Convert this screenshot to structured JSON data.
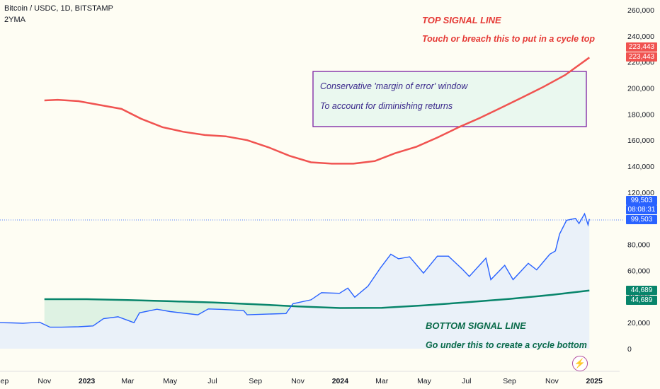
{
  "header": {
    "title": "Bitcoin / USDC, 1D, BITSTAMP",
    "indicator": "2YMA"
  },
  "annotations": {
    "top_title": "TOP SIGNAL LINE",
    "top_sub": "Touch or breach this to put in a cycle top",
    "box_line1": "Conservative 'margin of error' window",
    "box_line2": "To account for diminishing returns",
    "bottom_title": "BOTTOM SIGNAL LINE",
    "bottom_sub": "Go under this to create a cycle bottom"
  },
  "tags": {
    "top_a": "223,443",
    "top_b": "223,443",
    "price": "99,503",
    "countdown": "08:08:31",
    "price_line": "99,503",
    "bottom_a": "44,689",
    "bottom_b": "44,689"
  },
  "colors": {
    "price": "#2962ff",
    "top": "#f05350",
    "bottom": "#08856b",
    "box_border": "#7b1fa2",
    "box_fill": "#eaf8ef",
    "top_text": "#e53935",
    "bottom_text": "#0a6b4a"
  },
  "chart_data": {
    "type": "line",
    "y_ticks": [
      0,
      20000,
      40000,
      60000,
      80000,
      100000,
      120000,
      140000,
      160000,
      180000,
      200000,
      220000,
      240000,
      260000
    ],
    "y_tick_labels": [
      "0",
      "20,000",
      "40,000",
      "60,000",
      "80,000",
      "100,000",
      "120,000",
      "140,000",
      "160,000",
      "180,000",
      "200,000",
      "220,000",
      "240,000",
      "260,000"
    ],
    "ylim": [
      0,
      260000
    ],
    "x_ticks": [
      {
        "date": "2022-09-01",
        "label": "Sep"
      },
      {
        "date": "2022-11-01",
        "label": "Nov"
      },
      {
        "date": "2023-01-01",
        "label": "2023"
      },
      {
        "date": "2023-03-01",
        "label": "Mar"
      },
      {
        "date": "2023-05-01",
        "label": "May"
      },
      {
        "date": "2023-07-01",
        "label": "Jul"
      },
      {
        "date": "2023-09-01",
        "label": "Sep"
      },
      {
        "date": "2023-11-01",
        "label": "Nov"
      },
      {
        "date": "2024-01-01",
        "label": "2024"
      },
      {
        "date": "2024-03-01",
        "label": "Mar"
      },
      {
        "date": "2024-05-01",
        "label": "May"
      },
      {
        "date": "2024-07-01",
        "label": "Jul"
      },
      {
        "date": "2024-09-01",
        "label": "Sep"
      },
      {
        "date": "2024-11-01",
        "label": "Nov"
      },
      {
        "date": "2025-01-01",
        "label": "2025"
      }
    ],
    "xlim": [
      "2022-08-29",
      "2025-01-10"
    ],
    "series": [
      {
        "key": "price",
        "points": [
          [
            "2022-08-29",
            20000
          ],
          [
            "2022-09-15",
            19800
          ],
          [
            "2022-10-01",
            19500
          ],
          [
            "2022-10-25",
            20300
          ],
          [
            "2022-11-09",
            16500
          ],
          [
            "2022-11-25",
            16500
          ],
          [
            "2022-12-20",
            16800
          ],
          [
            "2023-01-10",
            17500
          ],
          [
            "2023-01-25",
            23000
          ],
          [
            "2023-02-15",
            24500
          ],
          [
            "2023-03-10",
            20000
          ],
          [
            "2023-03-18",
            27500
          ],
          [
            "2023-04-12",
            30300
          ],
          [
            "2023-05-01",
            28500
          ],
          [
            "2023-06-10",
            26000
          ],
          [
            "2023-06-25",
            30500
          ],
          [
            "2023-07-15",
            30200
          ],
          [
            "2023-08-15",
            29200
          ],
          [
            "2023-08-20",
            26000
          ],
          [
            "2023-09-15",
            26500
          ],
          [
            "2023-10-15",
            27000
          ],
          [
            "2023-10-25",
            34500
          ],
          [
            "2023-11-20",
            37500
          ],
          [
            "2023-12-05",
            43000
          ],
          [
            "2023-12-31",
            42500
          ],
          [
            "2024-01-12",
            46500
          ],
          [
            "2024-01-22",
            39500
          ],
          [
            "2024-02-10",
            48000
          ],
          [
            "2024-02-28",
            62000
          ],
          [
            "2024-03-14",
            72500
          ],
          [
            "2024-03-25",
            69000
          ],
          [
            "2024-04-10",
            70500
          ],
          [
            "2024-04-30",
            58000
          ],
          [
            "2024-05-20",
            71000
          ],
          [
            "2024-06-05",
            71000
          ],
          [
            "2024-06-25",
            61000
          ],
          [
            "2024-07-05",
            55500
          ],
          [
            "2024-07-29",
            69500
          ],
          [
            "2024-08-05",
            53000
          ],
          [
            "2024-08-25",
            64000
          ],
          [
            "2024-09-06",
            53000
          ],
          [
            "2024-09-28",
            65500
          ],
          [
            "2024-10-10",
            60500
          ],
          [
            "2024-10-29",
            72500
          ],
          [
            "2024-11-06",
            75000
          ],
          [
            "2024-11-12",
            88000
          ],
          [
            "2024-11-22",
            98500
          ],
          [
            "2024-12-05",
            100000
          ],
          [
            "2024-12-10",
            96000
          ],
          [
            "2024-12-18",
            103500
          ],
          [
            "2024-12-23",
            95000
          ],
          [
            "2024-12-25",
            99503
          ]
        ]
      },
      {
        "key": "top",
        "points": [
          [
            "2022-11-01",
            190500
          ],
          [
            "2022-11-20",
            191000
          ],
          [
            "2022-12-20",
            190000
          ],
          [
            "2023-01-20",
            187000
          ],
          [
            "2023-02-20",
            184000
          ],
          [
            "2023-03-20",
            176500
          ],
          [
            "2023-04-20",
            170000
          ],
          [
            "2023-05-20",
            166500
          ],
          [
            "2023-06-20",
            164000
          ],
          [
            "2023-07-20",
            163000
          ],
          [
            "2023-08-20",
            160000
          ],
          [
            "2023-09-20",
            154500
          ],
          [
            "2023-10-20",
            148000
          ],
          [
            "2023-11-20",
            143000
          ],
          [
            "2023-12-20",
            142000
          ],
          [
            "2024-01-20",
            142000
          ],
          [
            "2024-02-20",
            144000
          ],
          [
            "2024-03-20",
            150000
          ],
          [
            "2024-04-20",
            155000
          ],
          [
            "2024-05-20",
            162000
          ],
          [
            "2024-06-20",
            170000
          ],
          [
            "2024-07-20",
            177000
          ],
          [
            "2024-08-20",
            185000
          ],
          [
            "2024-09-20",
            193000
          ],
          [
            "2024-10-20",
            201000
          ],
          [
            "2024-11-20",
            210000
          ],
          [
            "2024-12-25",
            223443
          ]
        ]
      },
      {
        "key": "bottom",
        "points": [
          [
            "2022-11-01",
            38000
          ],
          [
            "2023-01-01",
            38000
          ],
          [
            "2023-03-01",
            37300
          ],
          [
            "2023-05-01",
            36400
          ],
          [
            "2023-07-01",
            35500
          ],
          [
            "2023-09-01",
            34100
          ],
          [
            "2023-11-01",
            32400
          ],
          [
            "2024-01-01",
            31200
          ],
          [
            "2024-03-01",
            31400
          ],
          [
            "2024-05-01",
            33200
          ],
          [
            "2024-07-01",
            35600
          ],
          [
            "2024-09-01",
            38200
          ],
          [
            "2024-11-01",
            41300
          ],
          [
            "2024-12-25",
            44689
          ]
        ]
      }
    ]
  }
}
